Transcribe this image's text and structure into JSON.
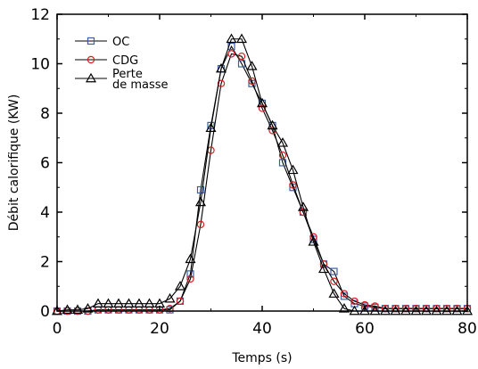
{
  "chart_data": {
    "type": "scatter",
    "title": "",
    "xlabel": "Temps (s)",
    "ylabel": "Débit calorifique (KW)",
    "xlim": [
      0,
      80
    ],
    "ylim": [
      0,
      12
    ],
    "xticks": [
      0,
      20,
      40,
      60,
      80
    ],
    "yticks": [
      0,
      2,
      4,
      6,
      8,
      10,
      12
    ],
    "grid": false,
    "legend_position": "top-left",
    "legend": [
      {
        "label_lines": [
          "OC"
        ],
        "series": 0
      },
      {
        "label_lines": [
          "CDG"
        ],
        "series": 1
      },
      {
        "label_lines": [
          "Perte",
          "de masse"
        ],
        "series": 2
      }
    ],
    "series": [
      {
        "name": "OC",
        "marker": "square",
        "color": "#3a5fa8",
        "x": [
          0,
          2,
          4,
          6,
          8,
          10,
          12,
          14,
          16,
          18,
          20,
          22,
          24,
          26,
          28,
          30,
          32,
          34,
          36,
          38,
          40,
          42,
          44,
          46,
          48,
          50,
          52,
          54,
          56,
          58,
          60,
          62,
          64,
          66,
          68,
          70,
          72,
          74,
          76,
          78,
          80
        ],
        "y": [
          0,
          0,
          0,
          0,
          0.05,
          0.05,
          0.05,
          0.05,
          0.05,
          0.05,
          0.05,
          0.05,
          0.4,
          1.5,
          4.9,
          7.5,
          9.8,
          10.7,
          10.0,
          9.2,
          8.4,
          7.5,
          6.0,
          5.0,
          4.0,
          2.9,
          1.9,
          1.6,
          0.6,
          0.3,
          0.2,
          0.15,
          0.1,
          0.1,
          0.1,
          0.1,
          0.1,
          0.1,
          0.1,
          0.1,
          0.1
        ]
      },
      {
        "name": "CDG",
        "marker": "circle",
        "color": "#d62020",
        "x": [
          0,
          2,
          4,
          6,
          8,
          10,
          12,
          14,
          16,
          18,
          20,
          22,
          24,
          26,
          28,
          30,
          32,
          34,
          36,
          38,
          40,
          42,
          44,
          46,
          48,
          50,
          52,
          54,
          56,
          58,
          60,
          62,
          64,
          66,
          68,
          70,
          72,
          74,
          76,
          78,
          80
        ],
        "y": [
          0,
          0,
          0,
          0,
          0.05,
          0.05,
          0.05,
          0.05,
          0.05,
          0.05,
          0.05,
          0.1,
          0.4,
          1.3,
          3.5,
          6.5,
          9.2,
          10.4,
          10.3,
          9.3,
          8.2,
          7.3,
          6.3,
          5.1,
          4.0,
          3.0,
          1.9,
          1.2,
          0.7,
          0.4,
          0.25,
          0.2,
          0.1,
          0.1,
          0.1,
          0.1,
          0.1,
          0.1,
          0.1,
          0.1,
          0.1
        ]
      },
      {
        "name": "Perte de masse",
        "marker": "triangle",
        "color": "#000000",
        "x": [
          0,
          2,
          4,
          6,
          8,
          10,
          12,
          14,
          16,
          18,
          20,
          22,
          24,
          26,
          28,
          30,
          32,
          34,
          36,
          38,
          40,
          42,
          44,
          46,
          48,
          50,
          52,
          54,
          56,
          58,
          60,
          62,
          64,
          66,
          68,
          70,
          72,
          74,
          76,
          78,
          80
        ],
        "y": [
          0,
          0.05,
          0.05,
          0.1,
          0.3,
          0.3,
          0.3,
          0.3,
          0.3,
          0.3,
          0.3,
          0.5,
          1.0,
          2.1,
          4.4,
          7.4,
          9.8,
          11.0,
          11.0,
          9.9,
          8.4,
          7.5,
          6.8,
          5.7,
          4.2,
          2.8,
          1.7,
          0.7,
          0.1,
          0,
          0,
          0,
          0,
          0,
          0,
          0,
          0,
          0,
          0,
          0,
          0
        ]
      }
    ]
  }
}
